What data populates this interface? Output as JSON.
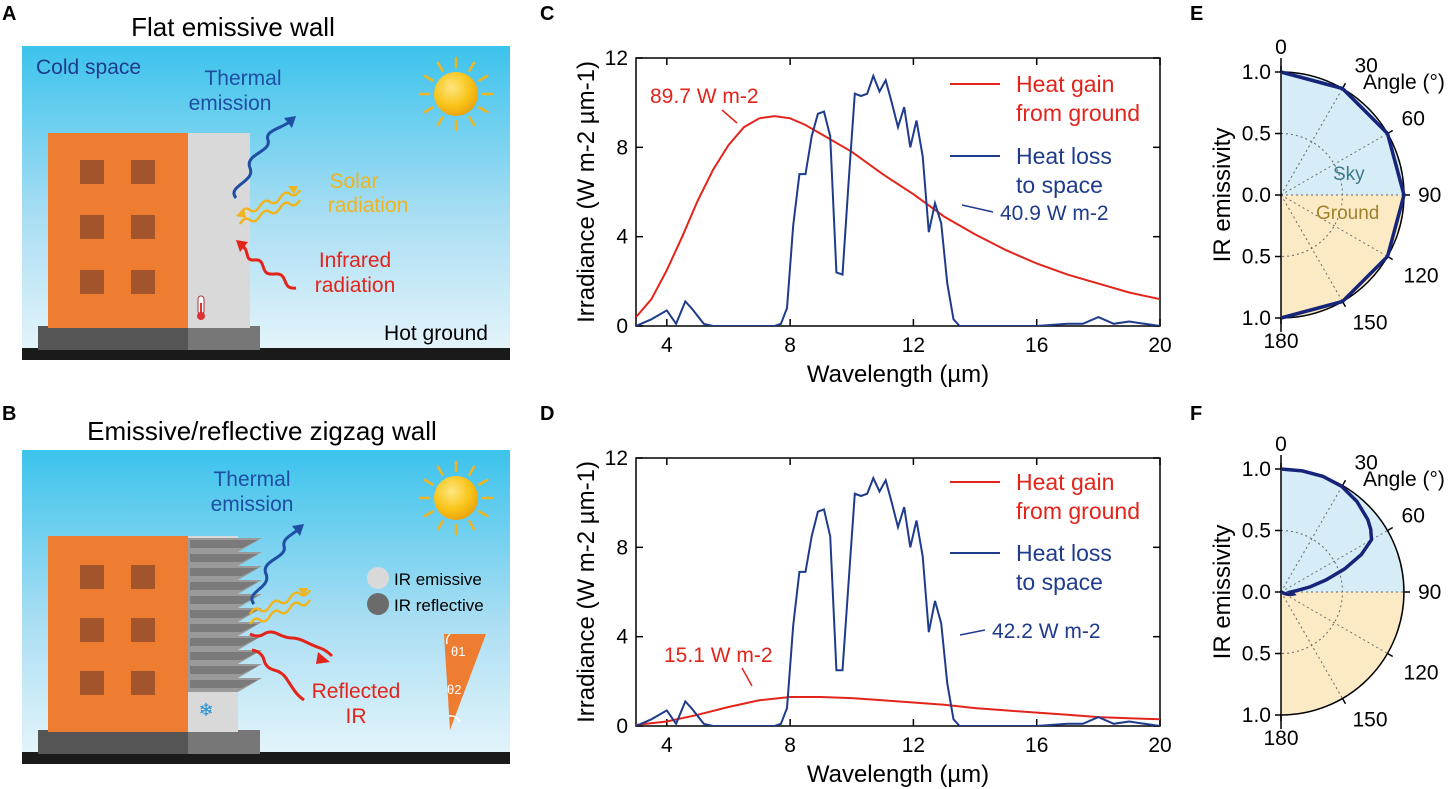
{
  "colors": {
    "heat_gain": "#e3241b",
    "heat_loss": "#1f3b8c",
    "sky_fill": "#d6ecf6",
    "ground_fill": "#fbeac4",
    "building_orange": "#ee7d31",
    "window_brown": "#a2552a",
    "wall_gray": "#d9d9d9",
    "solar_yellow": "#f0b51e",
    "sky_label": "#3f7a8a",
    "ground_label": "#a0822a"
  },
  "panel_a": {
    "letter": "A",
    "title": "Flat emissive wall",
    "cold_space": "Cold space",
    "thermal_l1": "Thermal",
    "thermal_l2": "emission",
    "solar_l1": "Solar",
    "solar_l2": "radiation",
    "ir_l1": "Infrared",
    "ir_l2": "radiation",
    "hot_ground": "Hot ground"
  },
  "panel_b": {
    "letter": "B",
    "title": "Emissive/reflective zigzag wall",
    "thermal_l1": "Thermal",
    "thermal_l2": "emission",
    "legend_emissive": "IR emissive",
    "legend_reflective": "IR reflective",
    "reflected_l1": "Reflected",
    "reflected_l2": "IR",
    "theta1": "θ1",
    "theta2": "θ2"
  },
  "chart_data": [
    {
      "panel": "C",
      "type": "line",
      "xlabel": "Wavelength (µm)",
      "ylabel": "Irradiance (W m-2 µm-1)",
      "xlim": [
        3,
        20
      ],
      "ylim": [
        0,
        12
      ],
      "xticks": [
        "4",
        "8",
        "12",
        "16",
        "20"
      ],
      "yticks": [
        "0",
        "4",
        "8",
        "12"
      ],
      "legend": [
        "Heat gain",
        "from ground",
        "Heat loss",
        "to space"
      ],
      "annotations": [
        "89.7 W m-2",
        "40.9 W m-2"
      ],
      "series": [
        {
          "name": "Heat gain from ground",
          "x": [
            3,
            3.5,
            4,
            4.5,
            5,
            5.5,
            6,
            6.5,
            7,
            7.5,
            8,
            8.5,
            9,
            10,
            11,
            12,
            13,
            14,
            15,
            16,
            17,
            18,
            19,
            20
          ],
          "y": [
            0.4,
            1.2,
            2.5,
            4.0,
            5.6,
            7.0,
            8.1,
            8.9,
            9.3,
            9.4,
            9.3,
            9.0,
            8.6,
            7.8,
            6.8,
            5.9,
            4.9,
            4.1,
            3.4,
            2.8,
            2.3,
            1.9,
            1.5,
            1.2
          ]
        },
        {
          "name": "Heat loss to space",
          "x": [
            3,
            3.5,
            4,
            4.3,
            4.6,
            4.8,
            5.2,
            5.5,
            6,
            7,
            7.5,
            7.7,
            7.9,
            8.1,
            8.3,
            8.5,
            8.7,
            8.9,
            9.1,
            9.3,
            9.5,
            9.7,
            9.9,
            10.1,
            10.3,
            10.5,
            10.7,
            10.9,
            11.1,
            11.3,
            11.5,
            11.7,
            11.9,
            12.1,
            12.3,
            12.5,
            12.7,
            12.9,
            13.1,
            13.3,
            13.5,
            14,
            15,
            16,
            17,
            17.5,
            18,
            18.5,
            19,
            19.5,
            20
          ],
          "y": [
            0,
            0.3,
            0.7,
            0.1,
            1.1,
            0.8,
            0.1,
            0,
            0,
            0,
            0,
            0.1,
            0.8,
            4.5,
            6.8,
            6.8,
            8.5,
            9.5,
            9.6,
            8.5,
            2.4,
            2.3,
            6.5,
            10.4,
            10.3,
            10.4,
            11.2,
            10.5,
            11.0,
            10.0,
            8.9,
            9.8,
            8.0,
            9.2,
            7.6,
            4.2,
            5.5,
            4.6,
            1.9,
            0.3,
            0,
            0,
            0,
            0,
            0.1,
            0.1,
            0.4,
            0.1,
            0.2,
            0.1,
            0
          ]
        }
      ]
    },
    {
      "panel": "D",
      "type": "line",
      "xlabel": "Wavelength (µm)",
      "ylabel": "Irradiance (W m-2 µm-1)",
      "xlim": [
        3,
        20
      ],
      "ylim": [
        0,
        12
      ],
      "xticks": [
        "4",
        "8",
        "12",
        "16",
        "20"
      ],
      "yticks": [
        "0",
        "4",
        "8",
        "12"
      ],
      "legend": [
        "Heat gain",
        "from ground",
        "Heat loss",
        "to space"
      ],
      "annotations": [
        "15.1 W m-2",
        "42.2 W m-2"
      ],
      "series": [
        {
          "name": "Heat gain from ground",
          "x": [
            3,
            4,
            5,
            6,
            7,
            8,
            9,
            10,
            11,
            12,
            13,
            14,
            15,
            16,
            17,
            18,
            19,
            20
          ],
          "y": [
            0.05,
            0.2,
            0.5,
            0.85,
            1.15,
            1.3,
            1.3,
            1.25,
            1.15,
            1.05,
            0.95,
            0.8,
            0.7,
            0.6,
            0.5,
            0.4,
            0.35,
            0.3
          ]
        },
        {
          "name": "Heat loss to space",
          "x": [
            3,
            3.5,
            4,
            4.3,
            4.6,
            4.8,
            5.2,
            5.5,
            6,
            7,
            7.5,
            7.7,
            7.9,
            8.1,
            8.3,
            8.5,
            8.7,
            8.9,
            9.1,
            9.3,
            9.5,
            9.7,
            9.9,
            10.1,
            10.3,
            10.5,
            10.7,
            10.9,
            11.1,
            11.3,
            11.5,
            11.7,
            11.9,
            12.1,
            12.3,
            12.5,
            12.7,
            12.9,
            13.1,
            13.3,
            13.5,
            14,
            15,
            16,
            17,
            17.5,
            18,
            18.5,
            19,
            19.5,
            20
          ],
          "y": [
            0,
            0.3,
            0.7,
            0.1,
            1.1,
            0.8,
            0.1,
            0,
            0,
            0,
            0,
            0.1,
            0.8,
            4.5,
            6.9,
            6.9,
            8.5,
            9.6,
            9.7,
            8.5,
            2.5,
            2.5,
            6.5,
            10.4,
            10.3,
            10.4,
            11.1,
            10.5,
            11.0,
            10.0,
            8.9,
            9.8,
            8.0,
            9.2,
            7.6,
            4.2,
            5.6,
            4.6,
            1.9,
            0.3,
            0,
            0,
            0,
            0,
            0.1,
            0.1,
            0.4,
            0.1,
            0.2,
            0.1,
            0
          ]
        }
      ]
    },
    {
      "panel": "E",
      "type": "polar",
      "ylabel": "IR emissivity",
      "radial_ticks": [
        "1.0",
        "0.5",
        "0.0",
        "0.5",
        "1.0"
      ],
      "angle_ticks": [
        "0",
        "30",
        "60",
        "90",
        "120",
        "150",
        "180"
      ],
      "angle_label": "Angle (°)",
      "region_labels": [
        "Sky",
        "Ground"
      ],
      "series": [
        {
          "name": "IR emissivity",
          "angle_deg": [
            0,
            30,
            60,
            90,
            120,
            150,
            180
          ],
          "r": [
            1,
            1,
            1,
            1,
            1,
            1,
            1
          ]
        }
      ]
    },
    {
      "panel": "F",
      "type": "polar",
      "ylabel": "IR emissivity",
      "radial_ticks": [
        "1.0",
        "0.5",
        "0.0",
        "0.5",
        "1.0"
      ],
      "angle_ticks": [
        "0",
        "30",
        "60",
        "90",
        "120",
        "150",
        "180"
      ],
      "angle_label": "Angle (°)",
      "series": [
        {
          "name": "IR emissivity",
          "angle_deg": [
            0,
            10,
            20,
            30,
            40,
            50,
            55,
            60,
            65,
            70,
            75,
            80,
            85,
            90,
            95,
            100,
            105,
            110,
            115,
            120,
            140,
            160,
            180
          ],
          "r": [
            1.0,
            1.0,
            1.0,
            0.99,
            0.96,
            0.92,
            0.89,
            0.85,
            0.72,
            0.55,
            0.38,
            0.24,
            0.13,
            0.08,
            0.09,
            0.1,
            0.08,
            0.05,
            0.02,
            0,
            0,
            0,
            0
          ]
        }
      ]
    }
  ]
}
